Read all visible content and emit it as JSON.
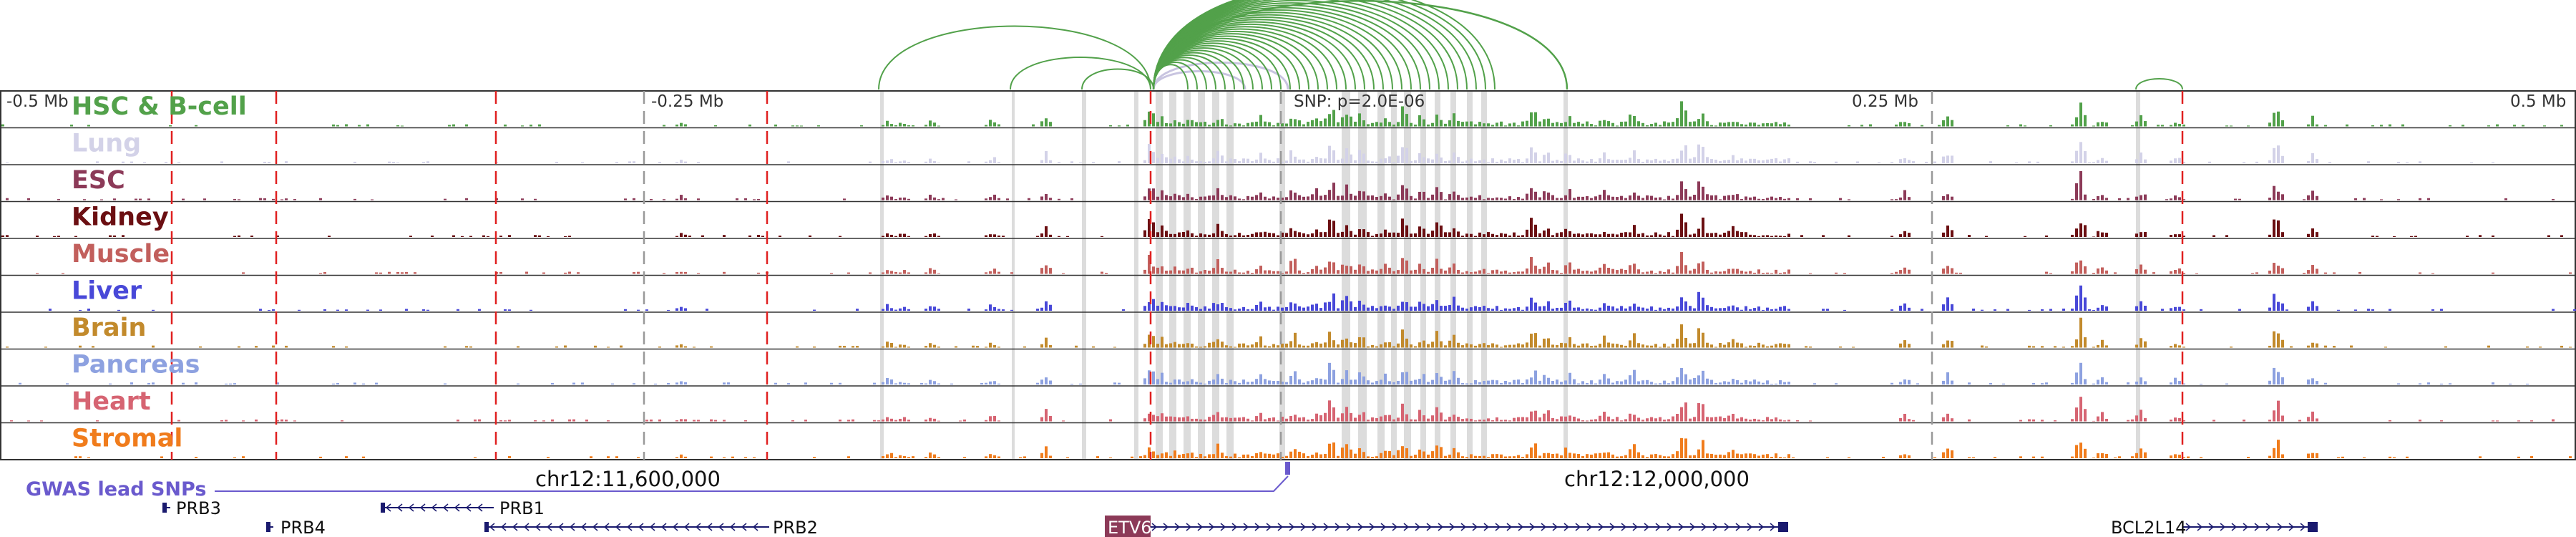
{
  "tracks": [
    {
      "name": "HSC & B-cell",
      "color": "#52a14a"
    },
    {
      "name": "Lung",
      "color": "#d3d2e8"
    },
    {
      "name": "ESC",
      "color": "#8c3a58"
    },
    {
      "name": "Kidney",
      "color": "#6b0f12"
    },
    {
      "name": "Muscle",
      "color": "#c25f5c"
    },
    {
      "name": "Liver",
      "color": "#4848d8"
    },
    {
      "name": "Brain",
      "color": "#c28a2c"
    },
    {
      "name": "Pancreas",
      "color": "#8da1e0"
    },
    {
      "name": "Heart",
      "color": "#d66472"
    },
    {
      "name": "Stromal",
      "color": "#f07c1c"
    }
  ],
  "ruler": {
    "labels": [
      "-0.5 Mb",
      "-0.25 Mb",
      "0.25 Mb",
      "0.5 Mb"
    ],
    "snp_label": "SNP: p=2.0E-06"
  },
  "coordinates": {
    "left": "chr12:11,600,000",
    "right": "chr12:12,000,000"
  },
  "gwas": {
    "label": "GWAS lead SNPs",
    "color": "#6a5acd"
  },
  "genes": [
    {
      "name": "PRB3",
      "strand": "-",
      "highlight": false
    },
    {
      "name": "PRB1",
      "strand": "-",
      "highlight": false
    },
    {
      "name": "PRB4",
      "strand": "-",
      "highlight": false
    },
    {
      "name": "PRB2",
      "strand": "-",
      "highlight": false
    },
    {
      "name": "ETV6",
      "strand": "+",
      "highlight": true,
      "highlight_color": "#8c3a58"
    },
    {
      "name": "BCL2L14",
      "strand": "+",
      "highlight": false
    }
  ],
  "colors": {
    "loop_green": "#52a14a",
    "loop_lavender": "#c8c4e0",
    "red_dash": "#e02020",
    "gray_dash": "#999999",
    "shade": "#dcdcdc",
    "gene_line": "#1a1a6e"
  }
}
